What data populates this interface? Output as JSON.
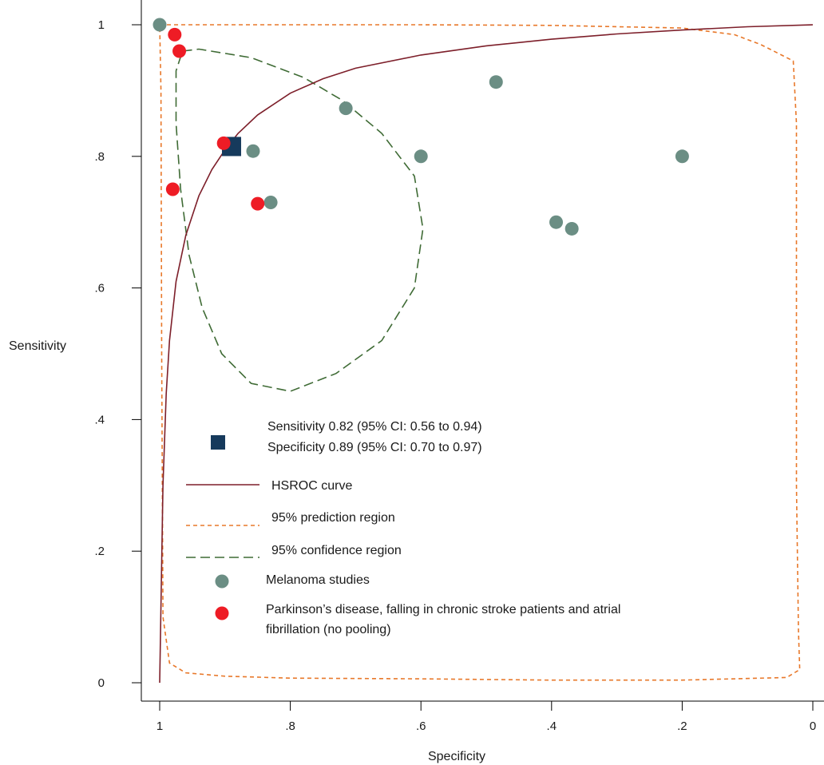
{
  "chart_data": {
    "type": "scatter",
    "xlabel": "Specificity",
    "ylabel": "Sensitivity",
    "xlim": [
      1,
      0
    ],
    "ylim": [
      0,
      1
    ],
    "x_reversed": true,
    "x_ticks": [
      {
        "value": 1,
        "label": "1"
      },
      {
        "value": 0.8,
        "label": ".8"
      },
      {
        "value": 0.6,
        "label": ".6"
      },
      {
        "value": 0.4,
        "label": ".4"
      },
      {
        "value": 0.2,
        "label": ".2"
      },
      {
        "value": 0,
        "label": "0"
      }
    ],
    "y_ticks": [
      {
        "value": 1,
        "label": "1"
      },
      {
        "value": 0.8,
        "label": ".8"
      },
      {
        "value": 0.6,
        "label": ".6"
      },
      {
        "value": 0.4,
        "label": ".4"
      },
      {
        "value": 0.2,
        "label": ".2"
      },
      {
        "value": 0,
        "label": "0"
      }
    ],
    "summary_point": {
      "specificity": 0.89,
      "sensitivity": 0.815,
      "color": "#163a5c"
    },
    "series": [
      {
        "name": "Melanoma studies",
        "color": "#6b8e84",
        "points": [
          {
            "specificity": 1.0,
            "sensitivity": 1.0
          },
          {
            "specificity": 0.857,
            "sensitivity": 0.808
          },
          {
            "specificity": 0.83,
            "sensitivity": 0.73
          },
          {
            "specificity": 0.715,
            "sensitivity": 0.873
          },
          {
            "specificity": 0.6,
            "sensitivity": 0.8
          },
          {
            "specificity": 0.485,
            "sensitivity": 0.913
          },
          {
            "specificity": 0.393,
            "sensitivity": 0.7
          },
          {
            "specificity": 0.369,
            "sensitivity": 0.69
          },
          {
            "specificity": 0.2,
            "sensitivity": 0.8
          }
        ]
      },
      {
        "name": "Parkinson’s disease, falling in chronic stroke patients and atrial fibrillation (no pooling)",
        "color": "#ee1c25",
        "points": [
          {
            "specificity": 0.977,
            "sensitivity": 0.985
          },
          {
            "specificity": 0.97,
            "sensitivity": 0.96
          },
          {
            "specificity": 0.902,
            "sensitivity": 0.82
          },
          {
            "specificity": 0.98,
            "sensitivity": 0.75
          },
          {
            "specificity": 0.85,
            "sensitivity": 0.728
          }
        ]
      }
    ],
    "hsroc_curve": {
      "color": "#7d1f2a",
      "points": [
        [
          1.0,
          0.0
        ],
        [
          0.995,
          0.3
        ],
        [
          0.99,
          0.44
        ],
        [
          0.985,
          0.52
        ],
        [
          0.975,
          0.61
        ],
        [
          0.96,
          0.68
        ],
        [
          0.94,
          0.74
        ],
        [
          0.92,
          0.78
        ],
        [
          0.9,
          0.81
        ],
        [
          0.88,
          0.835
        ],
        [
          0.85,
          0.863
        ],
        [
          0.8,
          0.896
        ],
        [
          0.75,
          0.918
        ],
        [
          0.7,
          0.934
        ],
        [
          0.6,
          0.954
        ],
        [
          0.5,
          0.968
        ],
        [
          0.4,
          0.978
        ],
        [
          0.3,
          0.986
        ],
        [
          0.2,
          0.992
        ],
        [
          0.1,
          0.997
        ],
        [
          0.0,
          1.0
        ]
      ]
    },
    "prediction_region": {
      "color": "#e8782a",
      "points": [
        [
          1.0,
          1.0
        ],
        [
          0.9,
          1.0
        ],
        [
          0.8,
          1.0
        ],
        [
          0.6,
          1.0
        ],
        [
          0.4,
          0.999
        ],
        [
          0.2,
          0.995
        ],
        [
          0.12,
          0.985
        ],
        [
          0.08,
          0.97
        ],
        [
          0.03,
          0.945
        ],
        [
          0.025,
          0.85
        ],
        [
          0.025,
          0.6
        ],
        [
          0.025,
          0.3
        ],
        [
          0.022,
          0.08
        ],
        [
          0.02,
          0.02
        ],
        [
          0.04,
          0.008
        ],
        [
          0.2,
          0.004
        ],
        [
          0.4,
          0.004
        ],
        [
          0.6,
          0.006
        ],
        [
          0.8,
          0.007
        ],
        [
          0.9,
          0.01
        ],
        [
          0.96,
          0.015
        ],
        [
          0.985,
          0.03
        ],
        [
          0.995,
          0.1
        ],
        [
          0.997,
          0.5
        ],
        [
          0.998,
          0.9
        ],
        [
          1.0,
          1.0
        ]
      ]
    },
    "confidence_region": {
      "color": "#3f6b35",
      "points": [
        [
          0.965,
          0.96
        ],
        [
          0.94,
          0.963
        ],
        [
          0.86,
          0.95
        ],
        [
          0.78,
          0.92
        ],
        [
          0.72,
          0.885
        ],
        [
          0.66,
          0.835
        ],
        [
          0.61,
          0.77
        ],
        [
          0.597,
          0.69
        ],
        [
          0.61,
          0.6
        ],
        [
          0.66,
          0.52
        ],
        [
          0.73,
          0.47
        ],
        [
          0.8,
          0.443
        ],
        [
          0.86,
          0.455
        ],
        [
          0.905,
          0.5
        ],
        [
          0.935,
          0.57
        ],
        [
          0.955,
          0.65
        ],
        [
          0.968,
          0.75
        ],
        [
          0.975,
          0.85
        ],
        [
          0.975,
          0.93
        ],
        [
          0.965,
          0.96
        ]
      ]
    },
    "legend": {
      "summary_line1": "Sensitivity 0.82 (95% CI: 0.56 to  0.94)",
      "summary_line2": "Specificity 0.89 (95% CI: 0.70 to  0.97)",
      "hsroc": "HSROC curve",
      "prediction": "95% prediction region",
      "confidence": "95% confidence region",
      "melanoma": "Melanoma studies",
      "parkinson_line1": "Parkinson’s disease, falling in chronic stroke patients and atrial",
      "parkinson_line2": "fibrillation (no pooling)"
    }
  }
}
